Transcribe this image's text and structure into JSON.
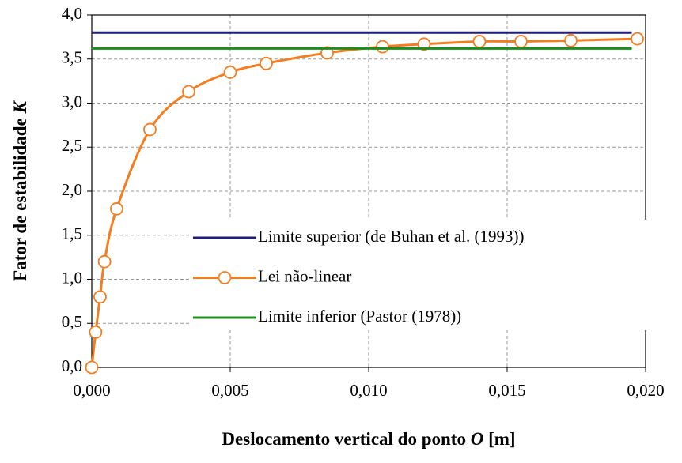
{
  "chart_data": {
    "type": "line",
    "xlabel": "Deslocamento vertical do ponto",
    "xlabel_symbol": "O",
    "xlabel_unit": "[m]",
    "ylabel": "Fator de estabilidade",
    "ylabel_symbol": "K",
    "xlim": [
      0,
      0.02
    ],
    "ylim": [
      0,
      4
    ],
    "xticks": [
      {
        "value": 0,
        "label": "0,000"
      },
      {
        "value": 0.005,
        "label": "0,005"
      },
      {
        "value": 0.01,
        "label": "0,010"
      },
      {
        "value": 0.015,
        "label": "0,015"
      },
      {
        "value": 0.02,
        "label": "0,020"
      }
    ],
    "yticks": [
      {
        "value": 0,
        "label": "0,0"
      },
      {
        "value": 0.5,
        "label": "0,5"
      },
      {
        "value": 1,
        "label": "1,0"
      },
      {
        "value": 1.5,
        "label": "1,5"
      },
      {
        "value": 2,
        "label": "2,0"
      },
      {
        "value": 2.5,
        "label": "2,5"
      },
      {
        "value": 3,
        "label": "3,0"
      },
      {
        "value": 3.5,
        "label": "3,5"
      },
      {
        "value": 4,
        "label": "4,0"
      }
    ],
    "grid": true,
    "legend": "lower right",
    "series": [
      {
        "name": "Limite superior (de Buhan et al. (1993))",
        "color": "#1f1f7a",
        "markers": false,
        "x": [
          0,
          0.0195
        ],
        "values": [
          3.8,
          3.8
        ]
      },
      {
        "name": "Lei não-linear",
        "color": "#f47d20",
        "markers": true,
        "x": [
          0,
          0.00014,
          0.0003,
          0.00046,
          0.0009,
          0.0021,
          0.0035,
          0.005,
          0.0063,
          0.0085,
          0.0105,
          0.012,
          0.014,
          0.0155,
          0.0173,
          0.0197
        ],
        "values": [
          0,
          0.4,
          0.8,
          1.2,
          1.8,
          2.7,
          3.13,
          3.35,
          3.45,
          3.57,
          3.64,
          3.67,
          3.7,
          3.7,
          3.71,
          3.73
        ]
      },
      {
        "name": "Limite inferior (Pastor (1978))",
        "color": "#1e8c1e",
        "markers": false,
        "x": [
          0,
          0.0195
        ],
        "values": [
          3.62,
          3.62
        ]
      }
    ]
  }
}
